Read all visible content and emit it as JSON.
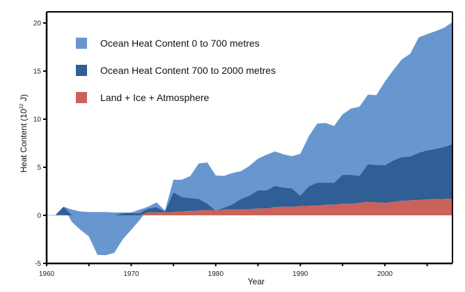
{
  "chart_data": {
    "type": "area",
    "title": "",
    "xlabel": "Year",
    "ylabel": "Heat Content (10²² J)",
    "ylabel_main": "Heat Content (10",
    "ylabel_sup": "22",
    "ylabel_tail": " J)",
    "xlim": [
      1960,
      2008
    ],
    "ylim": [
      -5,
      20
    ],
    "x_ticks": [
      1960,
      1965,
      1970,
      1975,
      1980,
      1985,
      1990,
      1995,
      2000,
      2005
    ],
    "x_tick_labels": [
      "1960",
      "",
      "1970",
      "",
      "1980",
      "",
      "1990",
      "",
      "2000",
      ""
    ],
    "y_ticks": [
      -5,
      0,
      5,
      10,
      15,
      20
    ],
    "y_tick_labels": [
      "-5",
      "0",
      "5",
      "10",
      "15",
      "20"
    ],
    "grid": false,
    "legend_position": "top-left",
    "stacking": "stacked (values are cumulative boundaries of each band)",
    "x": [
      1960,
      1961,
      1962,
      1963,
      1964,
      1965,
      1966,
      1967,
      1968,
      1969,
      1970,
      1971,
      1972,
      1973,
      1974,
      1975,
      1976,
      1977,
      1978,
      1979,
      1980,
      1981,
      1982,
      1983,
      1984,
      1985,
      1986,
      1987,
      1988,
      1989,
      1990,
      1991,
      1992,
      1993,
      1994,
      1995,
      1996,
      1997,
      1998,
      1999,
      2000,
      2001,
      2002,
      2003,
      2004,
      2005,
      2006,
      2007,
      2008
    ],
    "series": [
      {
        "name": "Ocean Heat Content 0 to 700 metres",
        "color": "#6897cf",
        "upper": [
          0,
          0,
          0.9,
          0.6,
          0.4,
          0.35,
          0.35,
          0.35,
          0.3,
          0.3,
          0.3,
          0.6,
          0.9,
          1.35,
          0.5,
          3.7,
          3.7,
          4.1,
          5.4,
          5.5,
          4.15,
          4.1,
          4.4,
          4.6,
          5.15,
          5.9,
          6.3,
          6.65,
          6.35,
          6.15,
          6.4,
          8.2,
          9.55,
          9.6,
          9.3,
          10.5,
          11.1,
          11.3,
          12.55,
          12.5,
          13.9,
          15.1,
          16.2,
          16.8,
          18.5,
          18.85,
          19.15,
          19.5,
          20.1
        ],
        "lower": [
          0,
          0,
          0.9,
          -0.7,
          -1.5,
          -2.2,
          -4.1,
          -4.15,
          -3.9,
          -2.5,
          -1.5,
          -0.5,
          0.7,
          0.85,
          0.4,
          2.4,
          1.9,
          1.8,
          1.7,
          1.2,
          0.5,
          0.8,
          1.15,
          1.7,
          2.05,
          2.6,
          2.6,
          3.05,
          2.9,
          2.8,
          2.05,
          3.0,
          3.4,
          3.4,
          3.4,
          4.2,
          4.2,
          4.1,
          5.3,
          5.25,
          5.2,
          5.7,
          6.05,
          6.1,
          6.5,
          6.75,
          6.9,
          7.1,
          7.4
        ]
      },
      {
        "name": "Ocean Heat Content 700 to 2000 metres",
        "color": "#2f5f94",
        "upper": [
          0,
          0,
          0.9,
          0,
          0,
          0,
          0,
          0,
          0,
          0.2,
          0.25,
          0.2,
          0.7,
          0.85,
          0.4,
          2.4,
          1.9,
          1.8,
          1.7,
          1.2,
          0.5,
          0.8,
          1.15,
          1.7,
          2.05,
          2.6,
          2.6,
          3.05,
          2.9,
          2.8,
          2.05,
          3.0,
          3.4,
          3.4,
          3.4,
          4.2,
          4.2,
          4.1,
          5.3,
          5.25,
          5.2,
          5.7,
          6.05,
          6.1,
          6.5,
          6.75,
          6.9,
          7.1,
          7.4
        ],
        "lower": [
          0,
          0,
          0,
          0,
          0,
          0,
          0,
          0,
          0,
          0,
          0,
          0,
          0.3,
          0.3,
          0.3,
          0.35,
          0.4,
          0.45,
          0.5,
          0.55,
          0.5,
          0.6,
          0.6,
          0.6,
          0.65,
          0.7,
          0.7,
          0.85,
          0.9,
          0.9,
          0.95,
          1.0,
          1.0,
          1.1,
          1.1,
          1.2,
          1.2,
          1.3,
          1.4,
          1.35,
          1.3,
          1.4,
          1.5,
          1.55,
          1.6,
          1.65,
          1.7,
          1.7,
          1.75
        ]
      },
      {
        "name": "Land + Ice + Atmosphere",
        "color": "#c9625a",
        "upper": [
          0,
          0,
          0,
          0,
          0,
          0,
          0,
          0,
          0,
          0,
          0,
          0,
          0.3,
          0.3,
          0.3,
          0.35,
          0.4,
          0.45,
          0.5,
          0.55,
          0.5,
          0.6,
          0.6,
          0.6,
          0.65,
          0.7,
          0.7,
          0.85,
          0.9,
          0.9,
          0.95,
          1.0,
          1.0,
          1.1,
          1.1,
          1.2,
          1.2,
          1.3,
          1.4,
          1.35,
          1.3,
          1.4,
          1.5,
          1.55,
          1.6,
          1.65,
          1.7,
          1.7,
          1.75
        ],
        "lower": [
          0,
          0,
          0,
          0,
          0,
          0,
          0,
          0,
          0,
          0,
          0,
          0,
          0,
          0,
          0,
          0,
          0,
          0,
          0,
          0,
          0,
          0,
          0,
          0,
          0,
          0,
          0,
          0,
          0,
          0,
          0,
          0,
          0,
          0,
          0,
          0,
          0,
          0,
          0,
          0,
          0,
          0,
          0,
          0,
          0,
          0,
          0,
          0,
          0
        ]
      }
    ],
    "legend": [
      {
        "label": "Ocean Heat Content 0 to 700 metres",
        "color": "#6897cf"
      },
      {
        "label": "Ocean Heat Content 700 to 2000 metres",
        "color": "#2f5f94"
      },
      {
        "label": "Land + Ice + Atmosphere",
        "color": "#c9625a"
      }
    ]
  }
}
